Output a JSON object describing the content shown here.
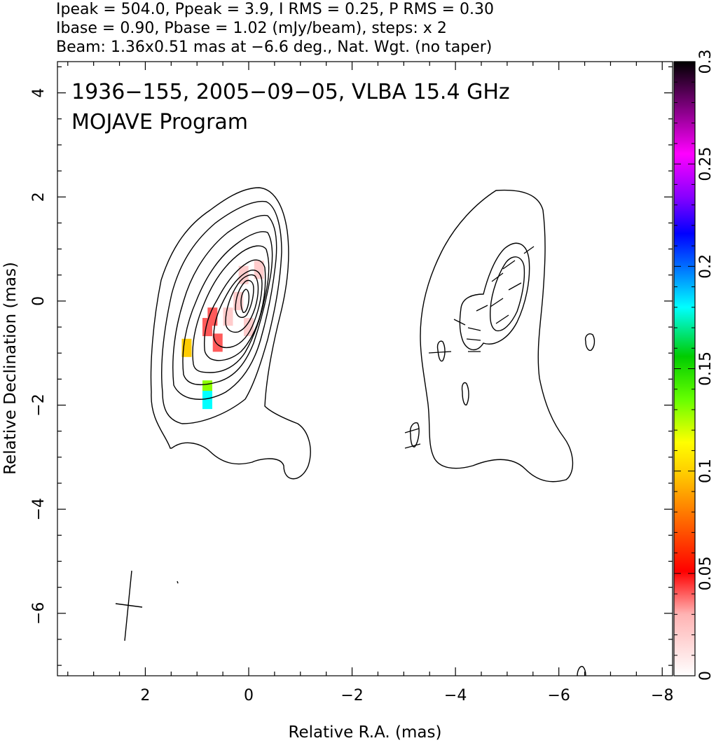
{
  "header": {
    "line1": "Ipeak = 504.0, Ppeak = 3.9, I RMS = 0.25, P RMS = 0.30",
    "line2": "Ibase = 0.90, Pbase = 1.02 (mJy/beam), steps: x 2",
    "line3": "Beam: 1.36x0.51 mas at −6.6 deg., Nat. Wgt. (no taper)"
  },
  "chart_data": [
    {
      "type": "contour",
      "panel": "total-intensity",
      "title": "1936−155, 2005−09−05, VLBA 15.4 GHz",
      "subtitle": "MOJAVE Program",
      "xlabel": "Relative R.A. (mas)",
      "ylabel": "Relative Declination (mas)",
      "xlim": [
        3.7,
        -8.2
      ],
      "ylim": [
        -7.2,
        4.6
      ],
      "x_ticks": [
        2,
        0,
        -2,
        -4,
        -6,
        -8
      ],
      "x_tick_labels": [
        "2",
        "0",
        "−2",
        "−4",
        "−6",
        "−8"
      ],
      "y_ticks": [
        4,
        2,
        0,
        -2,
        -4,
        -6
      ],
      "y_tick_labels": [
        "4",
        "2",
        "0",
        "−2",
        "−4",
        "−6"
      ],
      "grid": false,
      "contours": {
        "base_mJy_per_beam": 0.9,
        "step_factor": 2,
        "peak_mJy_per_beam": 504.0,
        "levels": 10,
        "core_position": [
          0,
          0
        ]
      },
      "beam": {
        "major_mas": 1.36,
        "minor_mas": 0.51,
        "pa_deg": -6.6,
        "center": [
          2.3,
          -5.8
        ]
      },
      "fractional_polarization_pixels": [
        {
          "x": 0.1,
          "y": 0.5,
          "value": 0.02
        },
        {
          "x": 0.2,
          "y": 0.0,
          "value": 0.02
        },
        {
          "x": 0.0,
          "y": -0.5,
          "value": 0.02
        },
        {
          "x": -0.2,
          "y": 0.6,
          "value": 0.02
        },
        {
          "x": 0.4,
          "y": -0.3,
          "value": 0.02
        },
        {
          "x": 0.7,
          "y": -0.3,
          "value": 0.04
        },
        {
          "x": 0.8,
          "y": -0.5,
          "value": 0.04
        },
        {
          "x": 0.6,
          "y": -0.8,
          "value": 0.04
        },
        {
          "x": 1.2,
          "y": -0.9,
          "value": 0.1
        },
        {
          "x": 0.8,
          "y": -1.7,
          "value": 0.13
        },
        {
          "x": 0.8,
          "y": -1.9,
          "value": 0.18
        }
      ]
    },
    {
      "type": "contour",
      "panel": "polarized-intensity",
      "offset_mas": -6.0,
      "contours": {
        "base_mJy_per_beam": 1.02,
        "step_factor": 2,
        "peak_mJy_per_beam": 3.9
      },
      "evpa_ticks": [
        {
          "x": -4.9,
          "y": 0.5
        },
        {
          "x": -5.1,
          "y": 0.2
        },
        {
          "x": -5.0,
          "y": -0.1
        },
        {
          "x": -5.2,
          "y": -0.3
        },
        {
          "x": -4.6,
          "y": -0.2
        },
        {
          "x": -4.3,
          "y": -0.5
        },
        {
          "x": -4.0,
          "y": -0.4
        },
        {
          "x": -3.9,
          "y": -1.0
        },
        {
          "x": -3.2,
          "y": -2.6
        },
        {
          "x": -3.2,
          "y": -2.8
        }
      ]
    }
  ],
  "colorbar": {
    "label_values": [
      "0",
      "0.05",
      "0.1",
      "0.15",
      "0.2",
      "0.25",
      "0.3"
    ],
    "min": 0,
    "max": 0.3,
    "colormap": "white-pink-red-orange-yellow-green-cyan-blue-purple-magenta-black"
  }
}
